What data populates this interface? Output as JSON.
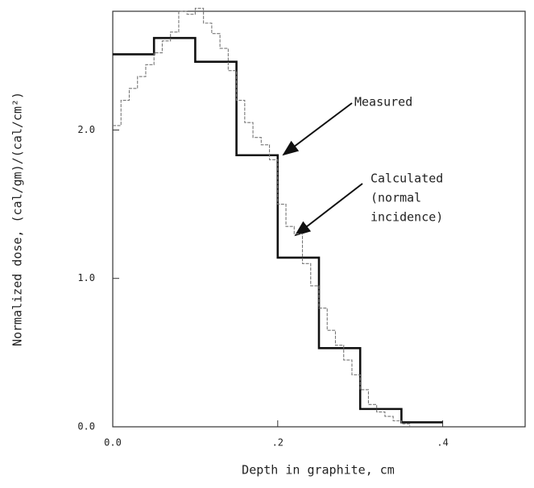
{
  "chart_data": {
    "type": "step",
    "xlabel": "Depth in graphite, cm",
    "ylabel": "Normalized dose, (cal/gm)/(cal/cm²)",
    "xlim": [
      0,
      0.5
    ],
    "ylim": [
      0,
      2.8
    ],
    "xticks": [
      {
        "value": 0,
        "label": "0.0"
      },
      {
        "value": 0.2,
        "label": ".2"
      },
      {
        "value": 0.4,
        "label": ".4"
      }
    ],
    "yticks": [
      {
        "value": 0,
        "label": "0.0"
      },
      {
        "value": 1,
        "label": "1.0"
      },
      {
        "value": 2,
        "label": "2.0"
      }
    ],
    "annotations": [
      {
        "lines": [
          "Measured"
        ]
      },
      {
        "lines": [
          "Calculated",
          "(normal",
          "incidence)"
        ]
      }
    ],
    "series": [
      {
        "color": "#111111",
        "x": [
          0,
          0.05,
          0.1,
          0.15,
          0.2,
          0.25,
          0.3,
          0.35,
          0.4
        ],
        "values": [
          2.51,
          2.62,
          2.46,
          1.83,
          1.14,
          0.53,
          0.12,
          0.03,
          0.03
        ]
      },
      {
        "color": "#777777",
        "x": [
          0,
          0.01,
          0.02,
          0.03,
          0.04,
          0.05,
          0.06,
          0.07,
          0.08,
          0.09,
          0.1,
          0.11,
          0.12,
          0.13,
          0.14,
          0.15,
          0.16,
          0.17,
          0.18,
          0.19,
          0.2,
          0.21,
          0.22,
          0.23,
          0.24,
          0.25,
          0.26,
          0.27,
          0.28,
          0.29,
          0.3,
          0.31,
          0.32,
          0.33,
          0.34,
          0.35,
          0.36
        ],
        "values": [
          2.03,
          2.2,
          2.28,
          2.36,
          2.44,
          2.52,
          2.6,
          2.66,
          2.8,
          2.78,
          2.82,
          2.72,
          2.65,
          2.55,
          2.4,
          2.2,
          2.05,
          1.95,
          1.9,
          1.8,
          1.5,
          1.35,
          1.3,
          1.1,
          0.95,
          0.8,
          0.65,
          0.55,
          0.45,
          0.35,
          0.25,
          0.15,
          0.1,
          0.07,
          0.04,
          0.02,
          0
        ]
      }
    ]
  }
}
